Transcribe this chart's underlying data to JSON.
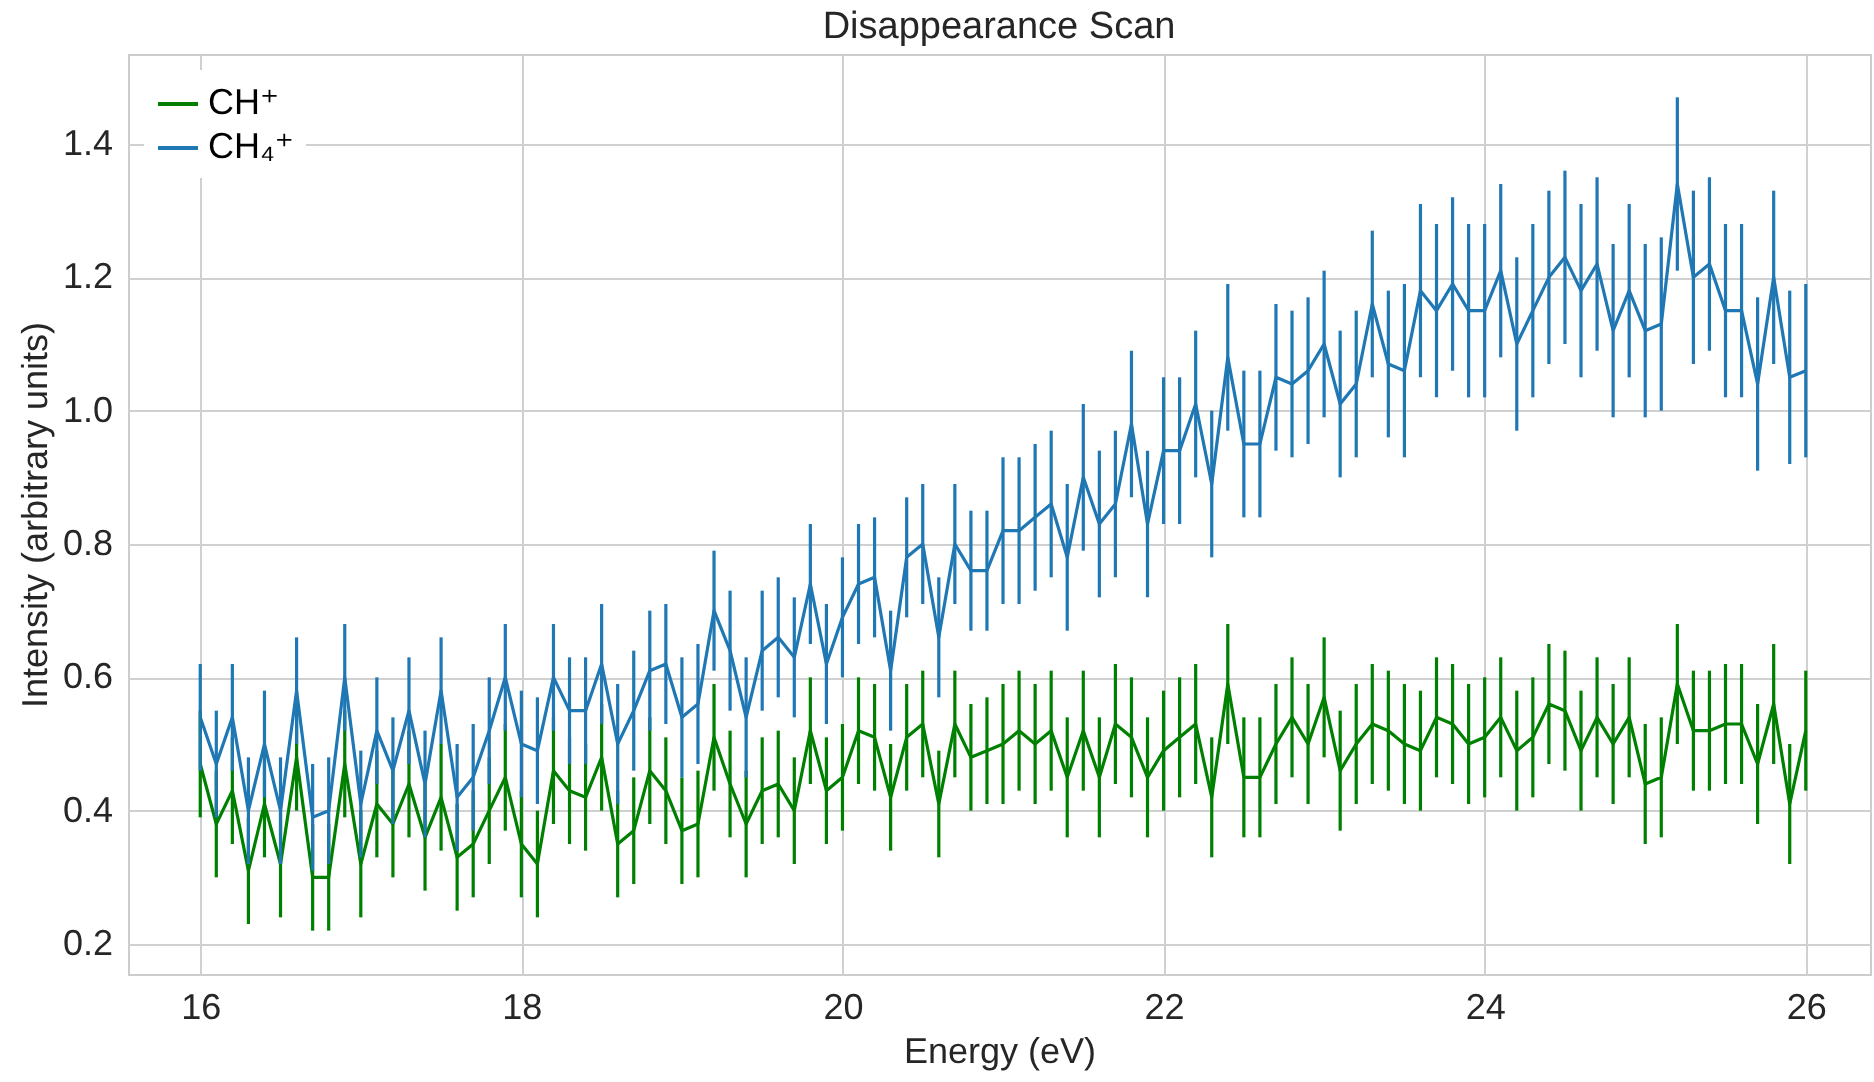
{
  "chart_data": {
    "type": "line",
    "title": "Disappearance Scan",
    "xlabel": "Energy (eV)",
    "ylabel": "Intensity (arbitrary units)",
    "x": [
      16.0,
      16.1,
      16.2,
      16.3,
      16.4,
      16.5,
      16.6,
      16.7,
      16.8,
      16.9,
      17.0,
      17.1,
      17.2,
      17.3,
      17.4,
      17.5,
      17.6,
      17.7,
      17.8,
      17.9,
      18.0,
      18.1,
      18.2,
      18.3,
      18.4,
      18.5,
      18.6,
      18.7,
      18.8,
      18.9,
      19.0,
      19.1,
      19.2,
      19.3,
      19.4,
      19.5,
      19.6,
      19.7,
      19.8,
      19.9,
      20.0,
      20.1,
      20.2,
      20.3,
      20.4,
      20.5,
      20.6,
      20.7,
      20.8,
      20.9,
      21.0,
      21.1,
      21.2,
      21.3,
      21.4,
      21.5,
      21.6,
      21.7,
      21.8,
      21.9,
      22.0,
      22.1,
      22.2,
      22.3,
      22.4,
      22.5,
      22.6,
      22.7,
      22.8,
      22.9,
      23.0,
      23.1,
      23.2,
      23.3,
      23.4,
      23.5,
      23.6,
      23.7,
      23.8,
      23.9,
      24.0,
      24.1,
      24.2,
      24.3,
      24.4,
      24.5,
      24.6,
      24.7,
      24.8,
      24.9,
      25.0,
      25.1,
      25.2,
      25.3,
      25.4,
      25.5,
      25.6,
      25.7,
      25.8,
      25.9,
      26.0
    ],
    "series": [
      {
        "name": "CH⁺",
        "color": "#008000",
        "values": [
          0.47,
          0.38,
          0.43,
          0.31,
          0.41,
          0.32,
          0.48,
          0.3,
          0.3,
          0.47,
          0.32,
          0.41,
          0.38,
          0.44,
          0.36,
          0.42,
          0.33,
          0.35,
          0.4,
          0.45,
          0.35,
          0.32,
          0.46,
          0.43,
          0.42,
          0.48,
          0.35,
          0.37,
          0.46,
          0.43,
          0.37,
          0.38,
          0.51,
          0.44,
          0.38,
          0.43,
          0.44,
          0.4,
          0.52,
          0.43,
          0.45,
          0.52,
          0.51,
          0.42,
          0.51,
          0.53,
          0.41,
          0.53,
          0.48,
          0.49,
          0.5,
          0.52,
          0.5,
          0.52,
          0.45,
          0.52,
          0.45,
          0.53,
          0.51,
          0.45,
          0.49,
          0.51,
          0.53,
          0.42,
          0.59,
          0.45,
          0.45,
          0.5,
          0.54,
          0.5,
          0.57,
          0.46,
          0.5,
          0.53,
          0.52,
          0.5,
          0.49,
          0.54,
          0.53,
          0.5,
          0.51,
          0.54,
          0.49,
          0.51,
          0.56,
          0.55,
          0.49,
          0.54,
          0.5,
          0.54,
          0.44,
          0.45,
          0.59,
          0.52,
          0.52,
          0.53,
          0.53,
          0.47,
          0.56,
          0.41,
          0.52
        ],
        "errors": [
          0.08,
          0.08,
          0.08,
          0.08,
          0.08,
          0.08,
          0.08,
          0.08,
          0.08,
          0.08,
          0.08,
          0.08,
          0.08,
          0.08,
          0.08,
          0.08,
          0.08,
          0.08,
          0.08,
          0.08,
          0.08,
          0.08,
          0.08,
          0.08,
          0.08,
          0.08,
          0.08,
          0.08,
          0.08,
          0.08,
          0.08,
          0.08,
          0.08,
          0.08,
          0.08,
          0.08,
          0.08,
          0.08,
          0.08,
          0.08,
          0.08,
          0.08,
          0.08,
          0.08,
          0.08,
          0.08,
          0.08,
          0.08,
          0.08,
          0.08,
          0.09,
          0.09,
          0.09,
          0.09,
          0.09,
          0.09,
          0.09,
          0.09,
          0.09,
          0.09,
          0.09,
          0.09,
          0.09,
          0.09,
          0.09,
          0.09,
          0.09,
          0.09,
          0.09,
          0.09,
          0.09,
          0.09,
          0.09,
          0.09,
          0.09,
          0.09,
          0.09,
          0.09,
          0.09,
          0.09,
          0.09,
          0.09,
          0.09,
          0.09,
          0.09,
          0.09,
          0.09,
          0.09,
          0.09,
          0.09,
          0.09,
          0.09,
          0.09,
          0.09,
          0.09,
          0.09,
          0.09,
          0.09,
          0.09,
          0.09,
          0.09
        ]
      },
      {
        "name": "CH₄⁺",
        "color": "#1f77b4",
        "values": [
          0.54,
          0.47,
          0.54,
          0.4,
          0.5,
          0.4,
          0.58,
          0.39,
          0.4,
          0.6,
          0.41,
          0.52,
          0.46,
          0.55,
          0.44,
          0.58,
          0.42,
          0.45,
          0.52,
          0.6,
          0.5,
          0.49,
          0.6,
          0.55,
          0.55,
          0.62,
          0.5,
          0.55,
          0.61,
          0.62,
          0.54,
          0.56,
          0.7,
          0.64,
          0.54,
          0.64,
          0.66,
          0.63,
          0.74,
          0.62,
          0.69,
          0.74,
          0.75,
          0.61,
          0.78,
          0.8,
          0.66,
          0.8,
          0.76,
          0.76,
          0.82,
          0.82,
          0.84,
          0.86,
          0.78,
          0.9,
          0.83,
          0.86,
          0.98,
          0.83,
          0.94,
          0.94,
          1.01,
          0.89,
          1.08,
          0.95,
          0.95,
          1.05,
          1.04,
          1.06,
          1.1,
          1.01,
          1.04,
          1.16,
          1.07,
          1.06,
          1.18,
          1.15,
          1.19,
          1.15,
          1.15,
          1.21,
          1.1,
          1.15,
          1.2,
          1.23,
          1.18,
          1.22,
          1.12,
          1.18,
          1.12,
          1.13,
          1.34,
          1.2,
          1.22,
          1.15,
          1.15,
          1.04,
          1.2,
          1.05,
          1.06
        ],
        "errors": [
          0.08,
          0.08,
          0.08,
          0.08,
          0.08,
          0.08,
          0.08,
          0.08,
          0.08,
          0.08,
          0.08,
          0.08,
          0.08,
          0.08,
          0.08,
          0.08,
          0.08,
          0.08,
          0.08,
          0.08,
          0.08,
          0.08,
          0.08,
          0.08,
          0.08,
          0.09,
          0.09,
          0.09,
          0.09,
          0.09,
          0.09,
          0.09,
          0.09,
          0.09,
          0.09,
          0.09,
          0.09,
          0.09,
          0.09,
          0.09,
          0.09,
          0.09,
          0.09,
          0.09,
          0.09,
          0.09,
          0.09,
          0.09,
          0.09,
          0.09,
          0.11,
          0.11,
          0.11,
          0.11,
          0.11,
          0.11,
          0.11,
          0.11,
          0.11,
          0.11,
          0.11,
          0.11,
          0.11,
          0.11,
          0.11,
          0.11,
          0.11,
          0.11,
          0.11,
          0.11,
          0.11,
          0.11,
          0.11,
          0.11,
          0.11,
          0.13,
          0.13,
          0.13,
          0.13,
          0.13,
          0.13,
          0.13,
          0.13,
          0.13,
          0.13,
          0.13,
          0.13,
          0.13,
          0.13,
          0.13,
          0.13,
          0.13,
          0.13,
          0.13,
          0.13,
          0.13,
          0.13,
          0.13,
          0.13,
          0.13,
          0.13
        ]
      }
    ],
    "xlim": [
      15.55,
      26.4
    ],
    "xticks": [
      16,
      18,
      20,
      22,
      24,
      26
    ],
    "ylim": [
      0.155,
      1.535
    ],
    "yticks": [
      0.2,
      0.4,
      0.6,
      0.8,
      {
        "value": 1,
        "label": "1.0"
      },
      1.2,
      1.4
    ],
    "grid": true,
    "legend": "top left",
    "marker": "none",
    "line_style": "solid"
  }
}
